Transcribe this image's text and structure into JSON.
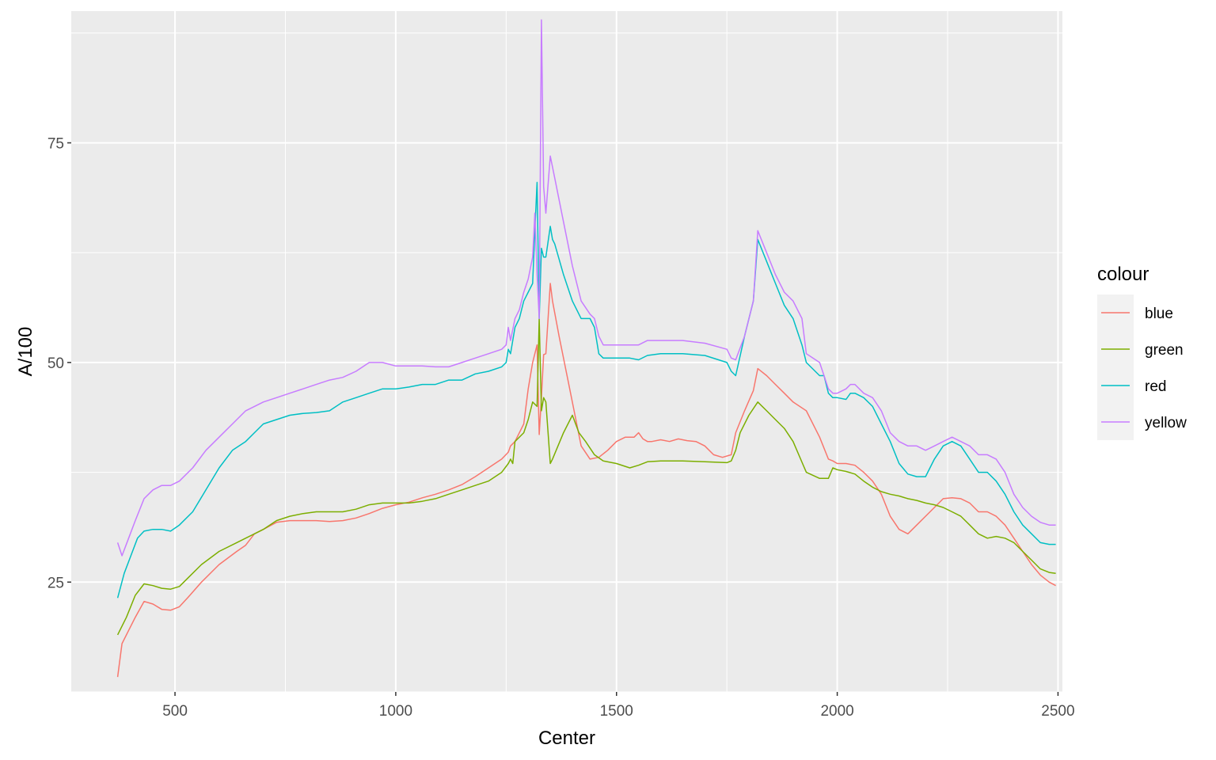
{
  "chart_data": {
    "type": "line",
    "title": "",
    "xlabel": "Center",
    "ylabel": "A/100",
    "xlim": [
      265,
      2510
    ],
    "ylim": [
      12.5,
      90
    ],
    "x_ticks": [
      500,
      1000,
      1500,
      2000,
      2500
    ],
    "x_tick_labels": [
      "500",
      "1000",
      "1500",
      "2000",
      "2500"
    ],
    "y_ticks": [
      25,
      50,
      75
    ],
    "y_tick_labels": [
      "25",
      "50",
      "75"
    ],
    "x_minor": [
      750,
      1250,
      1750,
      2250
    ],
    "y_minor": [
      12.5,
      37.5,
      62.5,
      87.5
    ],
    "grid": true,
    "panel_background": "#ebebeb",
    "legend": {
      "title": "colour",
      "position": "right"
    },
    "series": [
      {
        "name": "blue",
        "color": "#f8766d",
        "x": [
          370,
          380,
          395,
          410,
          430,
          450,
          470,
          490,
          510,
          530,
          560,
          600,
          640,
          660,
          680,
          700,
          730,
          760,
          790,
          820,
          850,
          880,
          910,
          940,
          970,
          1000,
          1030,
          1060,
          1090,
          1120,
          1150,
          1180,
          1210,
          1240,
          1255,
          1260,
          1270,
          1290,
          1300,
          1310,
          1320,
          1325,
          1330,
          1335,
          1340,
          1345,
          1350,
          1355,
          1370,
          1390,
          1410,
          1420,
          1440,
          1460,
          1480,
          1500,
          1520,
          1540,
          1550,
          1560,
          1570,
          1580,
          1600,
          1620,
          1640,
          1660,
          1680,
          1700,
          1720,
          1740,
          1760,
          1770,
          1790,
          1810,
          1820,
          1840,
          1860,
          1880,
          1900,
          1930,
          1960,
          1980,
          1990,
          2000,
          2020,
          2040,
          2060,
          2080,
          2100,
          2120,
          2140,
          2160,
          2180,
          2200,
          2220,
          2240,
          2260,
          2280,
          2300,
          2320,
          2340,
          2360,
          2380,
          2400,
          2420,
          2440,
          2460,
          2480,
          2495
        ],
        "y": [
          14.2,
          18,
          19.5,
          21,
          22.8,
          22.5,
          21.9,
          21.8,
          22.2,
          23.3,
          25,
          27,
          28.5,
          29.2,
          30.5,
          31,
          31.8,
          32,
          32,
          32,
          31.9,
          32,
          32.3,
          32.8,
          33.4,
          33.8,
          34.1,
          34.6,
          35,
          35.5,
          36.1,
          37,
          38,
          39,
          39.8,
          40.5,
          41,
          43,
          47,
          50,
          52,
          41.8,
          46,
          50.9,
          51,
          55,
          59,
          57,
          53,
          48,
          43,
          40.5,
          39,
          39.2,
          40,
          41,
          41.5,
          41.5,
          42,
          41.3,
          41,
          41,
          41.2,
          41,
          41.3,
          41.1,
          41,
          40.5,
          39.5,
          39.2,
          39.5,
          42,
          44.5,
          46.8,
          49.3,
          48.5,
          47.5,
          46.5,
          45.5,
          44.5,
          41.5,
          39,
          38.8,
          38.5,
          38.5,
          38.3,
          37.5,
          36.5,
          35,
          32.5,
          31,
          30.5,
          31.5,
          32.5,
          33.5,
          34.5,
          34.6,
          34.5,
          34,
          33,
          33,
          32.5,
          31.5,
          30,
          28.5,
          27,
          25.8,
          25,
          24.6
        ]
      },
      {
        "name": "green",
        "color": "#7cae00",
        "x": [
          370,
          390,
          410,
          430,
          450,
          470,
          490,
          510,
          530,
          560,
          600,
          640,
          660,
          680,
          700,
          730,
          760,
          790,
          820,
          850,
          880,
          910,
          940,
          970,
          1000,
          1030,
          1060,
          1090,
          1120,
          1150,
          1180,
          1210,
          1240,
          1255,
          1260,
          1265,
          1270,
          1290,
          1300,
          1310,
          1320,
          1325,
          1330,
          1335,
          1340,
          1350,
          1355,
          1380,
          1400,
          1415,
          1430,
          1450,
          1470,
          1500,
          1530,
          1550,
          1570,
          1600,
          1650,
          1700,
          1750,
          1760,
          1770,
          1780,
          1800,
          1820,
          1840,
          1860,
          1880,
          1900,
          1930,
          1960,
          1980,
          1990,
          2000,
          2020,
          2040,
          2060,
          2080,
          2100,
          2120,
          2140,
          2160,
          2180,
          2200,
          2220,
          2240,
          2260,
          2280,
          2300,
          2320,
          2340,
          2360,
          2380,
          2400,
          2420,
          2440,
          2460,
          2480,
          2495
        ],
        "y": [
          19,
          21,
          23.5,
          24.8,
          24.6,
          24.3,
          24.2,
          24.5,
          25.5,
          27,
          28.5,
          29.5,
          30,
          30.5,
          31,
          32,
          32.5,
          32.8,
          33,
          33,
          33,
          33.3,
          33.8,
          34,
          34,
          34,
          34.2,
          34.5,
          35,
          35.5,
          36,
          36.5,
          37.5,
          38.5,
          39,
          38.5,
          41,
          42,
          43.5,
          45.5,
          45,
          55,
          44.5,
          46,
          45.5,
          38.5,
          39,
          42,
          44,
          42,
          41,
          39.5,
          38.8,
          38.5,
          38,
          38.3,
          38.7,
          38.8,
          38.8,
          38.7,
          38.6,
          38.8,
          40,
          42,
          44,
          45.5,
          44.5,
          43.5,
          42.5,
          41,
          37.5,
          36.8,
          36.8,
          38,
          37.8,
          37.6,
          37.3,
          36.5,
          35.8,
          35.3,
          35,
          34.8,
          34.5,
          34.3,
          34,
          33.8,
          33.5,
          33,
          32.5,
          31.5,
          30.5,
          30,
          30.2,
          30,
          29.5,
          28.5,
          27.5,
          26.5,
          26.1,
          26
        ]
      },
      {
        "name": "red",
        "color": "#00bfc4",
        "x": [
          370,
          385,
          400,
          415,
          430,
          450,
          470,
          490,
          510,
          540,
          570,
          600,
          630,
          660,
          680,
          700,
          730,
          760,
          790,
          820,
          850,
          880,
          910,
          940,
          970,
          1000,
          1030,
          1060,
          1090,
          1120,
          1150,
          1180,
          1210,
          1240,
          1250,
          1255,
          1260,
          1270,
          1280,
          1290,
          1300,
          1310,
          1315,
          1320,
          1325,
          1330,
          1335,
          1340,
          1350,
          1355,
          1360,
          1380,
          1400,
          1420,
          1440,
          1450,
          1460,
          1470,
          1500,
          1530,
          1550,
          1570,
          1600,
          1650,
          1700,
          1750,
          1760,
          1770,
          1790,
          1810,
          1820,
          1840,
          1860,
          1880,
          1900,
          1920,
          1930,
          1960,
          1970,
          1980,
          1990,
          2000,
          2020,
          2030,
          2040,
          2060,
          2080,
          2100,
          2120,
          2140,
          2160,
          2180,
          2200,
          2220,
          2240,
          2260,
          2280,
          2300,
          2320,
          2340,
          2360,
          2380,
          2400,
          2420,
          2440,
          2460,
          2480,
          2495
        ],
        "y": [
          23.2,
          26,
          28,
          30,
          30.8,
          31,
          31,
          30.8,
          31.5,
          33,
          35.5,
          38,
          40,
          41,
          42,
          43,
          43.5,
          44,
          44.2,
          44.3,
          44.5,
          45.5,
          46,
          46.5,
          47,
          47,
          47.2,
          47.5,
          47.5,
          48,
          48,
          48.7,
          49,
          49.5,
          50,
          51.5,
          51,
          54,
          55,
          57,
          58,
          59,
          65,
          70.5,
          55,
          63,
          62,
          62,
          65.5,
          64,
          63.5,
          60,
          57,
          55,
          55,
          54,
          51,
          50.5,
          50.5,
          50.5,
          50.3,
          50.8,
          51,
          51,
          50.8,
          50,
          49,
          48.5,
          53,
          57,
          64,
          61.5,
          59,
          56.5,
          55,
          52,
          50,
          48.5,
          48.5,
          46.5,
          46,
          46,
          45.8,
          46.5,
          46.5,
          46,
          45,
          43,
          41,
          38.5,
          37.3,
          37,
          37,
          39,
          40.5,
          41,
          40.5,
          39,
          37.5,
          37.5,
          36.5,
          35,
          33,
          31.5,
          30.5,
          29.5,
          29.3,
          29.3
        ]
      },
      {
        "name": "yellow",
        "color": "#c77cff",
        "x": [
          370,
          380,
          395,
          410,
          430,
          450,
          470,
          490,
          510,
          540,
          570,
          600,
          630,
          660,
          680,
          700,
          730,
          760,
          790,
          820,
          850,
          880,
          910,
          940,
          970,
          1000,
          1030,
          1060,
          1090,
          1120,
          1150,
          1180,
          1210,
          1240,
          1250,
          1255,
          1260,
          1270,
          1280,
          1290,
          1300,
          1310,
          1315,
          1320,
          1325,
          1330,
          1335,
          1340,
          1350,
          1360,
          1380,
          1400,
          1420,
          1440,
          1450,
          1460,
          1470,
          1500,
          1530,
          1550,
          1570,
          1600,
          1650,
          1700,
          1750,
          1760,
          1770,
          1790,
          1810,
          1820,
          1840,
          1860,
          1880,
          1900,
          1920,
          1930,
          1960,
          1970,
          1980,
          1990,
          2000,
          2020,
          2030,
          2040,
          2060,
          2080,
          2100,
          2120,
          2140,
          2160,
          2180,
          2200,
          2220,
          2240,
          2260,
          2280,
          2300,
          2320,
          2340,
          2360,
          2380,
          2400,
          2420,
          2440,
          2460,
          2480,
          2495
        ],
        "y": [
          29.5,
          28,
          30,
          32,
          34.5,
          35.5,
          36,
          36,
          36.5,
          38,
          40,
          41.5,
          43,
          44.5,
          45,
          45.5,
          46,
          46.5,
          47,
          47.5,
          48,
          48.3,
          49,
          50,
          50,
          49.6,
          49.6,
          49.6,
          49.5,
          49.5,
          50,
          50.5,
          51,
          51.5,
          52,
          54,
          52.5,
          55,
          56,
          58,
          59.5,
          62,
          67,
          60,
          55,
          89,
          70,
          67,
          73.5,
          71,
          66,
          61,
          57,
          55.5,
          55,
          53,
          52,
          52,
          52,
          52,
          52.5,
          52.5,
          52.5,
          52.2,
          51.5,
          50.5,
          50.3,
          53,
          57,
          65,
          62.5,
          60,
          58,
          57,
          55,
          51,
          50,
          48.5,
          47,
          46.5,
          46.5,
          47,
          47.5,
          47.5,
          46.5,
          46,
          44.5,
          42,
          41,
          40.5,
          40.5,
          40,
          40.5,
          41,
          41.5,
          41,
          40.5,
          39.5,
          39.5,
          39,
          37.5,
          35,
          33.5,
          32.5,
          31.8,
          31.5,
          31.5
        ]
      }
    ]
  }
}
